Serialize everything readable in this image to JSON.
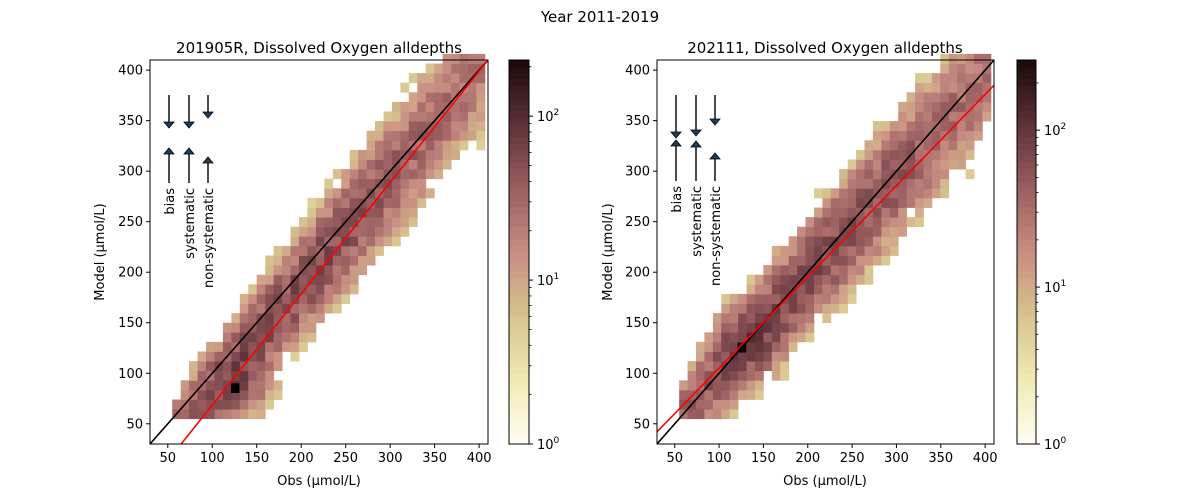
{
  "figure": {
    "suptitle": "Year 2011-2019"
  },
  "colors": {
    "one_to_one": "#000000",
    "fit_line": "#ff0000",
    "arrow_fill": "#1f3d5a",
    "cmap": [
      "#fffcf0",
      "#efeab4",
      "#d7c38d",
      "#c88d82",
      "#9c5f62",
      "#5e3339",
      "#1e0b0c"
    ]
  },
  "chart_data": [
    {
      "type": "heatmap",
      "title": "201905R, Dissolved Oxygen alldepths",
      "xlabel": "Obs (μmol/L)",
      "ylabel": "Model (μmol/L)",
      "xlim": [
        30,
        410
      ],
      "ylim": [
        30,
        410
      ],
      "xticks": [
        "50",
        "100",
        "150",
        "200",
        "250",
        "300",
        "350",
        "400"
      ],
      "yticks": [
        "50",
        "100",
        "150",
        "200",
        "250",
        "300",
        "350",
        "400"
      ],
      "one_to_one_line": {
        "from": [
          30,
          30
        ],
        "to": [
          410,
          410
        ]
      },
      "fit_line": {
        "from": [
          65,
          30
        ],
        "to": [
          410,
          410
        ]
      },
      "colorbar": {
        "scale": "log",
        "min": 1,
        "max": 220,
        "ticks": [
          "10^0",
          "10^1",
          "10^2"
        ]
      },
      "arrow_labels": [
        "bias",
        "systematic",
        "non-systematic"
      ],
      "density": {
        "band_slope": 1.05,
        "band_offset": -22,
        "peak_at": [
          125,
          85
        ],
        "peak_count": 220
      }
    },
    {
      "type": "heatmap",
      "title": "202111, Dissolved Oxygen alldepths",
      "xlabel": "Obs (μmol/L)",
      "ylabel": "Model (μmol/L)",
      "xlim": [
        30,
        410
      ],
      "ylim": [
        30,
        410
      ],
      "xticks": [
        "50",
        "100",
        "150",
        "200",
        "250",
        "300",
        "350",
        "400"
      ],
      "yticks": [
        "50",
        "100",
        "150",
        "200",
        "250",
        "300",
        "350",
        "400"
      ],
      "one_to_one_line": {
        "from": [
          30,
          30
        ],
        "to": [
          410,
          410
        ]
      },
      "fit_line": {
        "from": [
          30,
          42
        ],
        "to": [
          410,
          385
        ]
      },
      "colorbar": {
        "scale": "log",
        "min": 1,
        "max": 280,
        "ticks": [
          "10^0",
          "10^1",
          "10^2"
        ]
      },
      "arrow_labels": [
        "bias",
        "systematic",
        "non-systematic"
      ],
      "density": {
        "band_slope": 0.97,
        "band_offset": 3,
        "peak_at": [
          125,
          125
        ],
        "peak_count": 280
      }
    }
  ]
}
